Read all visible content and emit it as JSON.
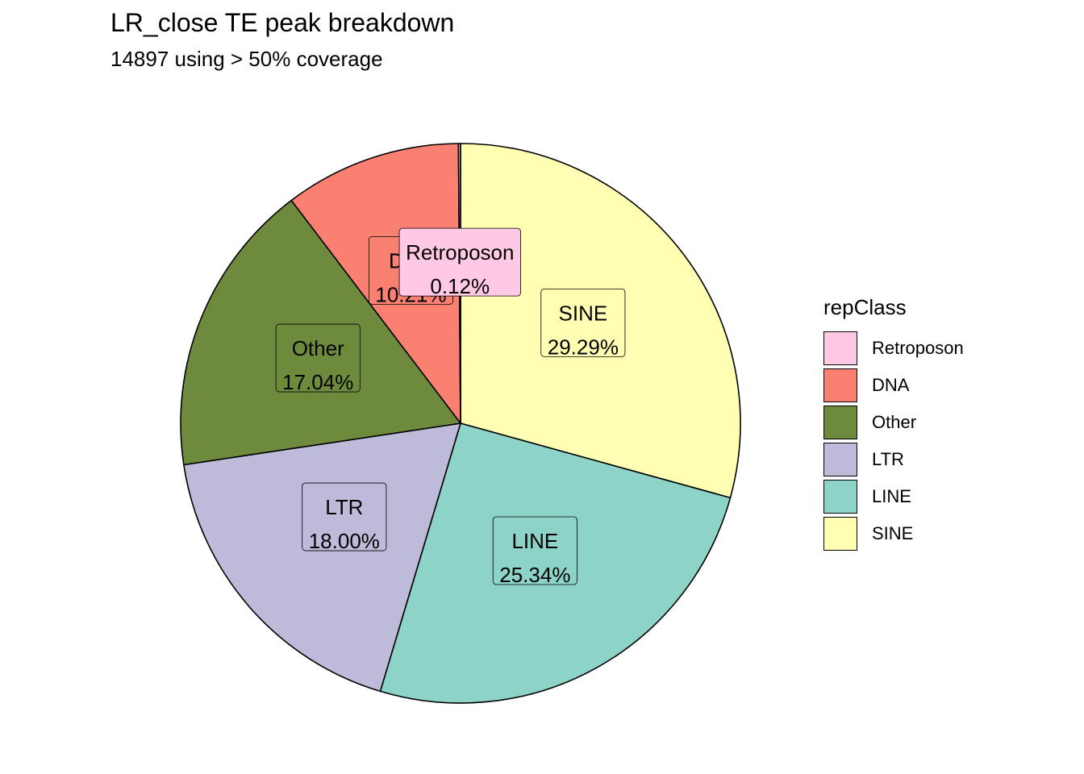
{
  "chart_data": {
    "type": "pie",
    "title": "LR_close TE peak breakdown",
    "subtitle": "14897 using > 50% coverage",
    "legend_title": "repClass",
    "legend_position": "right",
    "slices": [
      {
        "name": "SINE",
        "percent": 29.29,
        "label": "29.29%",
        "color": "#FFFFB3"
      },
      {
        "name": "LINE",
        "percent": 25.34,
        "label": "25.34%",
        "color": "#8DD3C7"
      },
      {
        "name": "LTR",
        "percent": 18.0,
        "label": "18.00%",
        "color": "#BEBADA"
      },
      {
        "name": "Other",
        "percent": 17.04,
        "label": "17.04%",
        "color": "#6E8B3D"
      },
      {
        "name": "DNA",
        "percent": 10.21,
        "label": "10.21%",
        "color": "#FA8072"
      },
      {
        "name": "Retroposon",
        "percent": 0.12,
        "label": "0.12%",
        "color": "#FFC8E5"
      }
    ],
    "legend_order": [
      "Retroposon",
      "DNA",
      "Other",
      "LTR",
      "LINE",
      "SINE"
    ]
  }
}
